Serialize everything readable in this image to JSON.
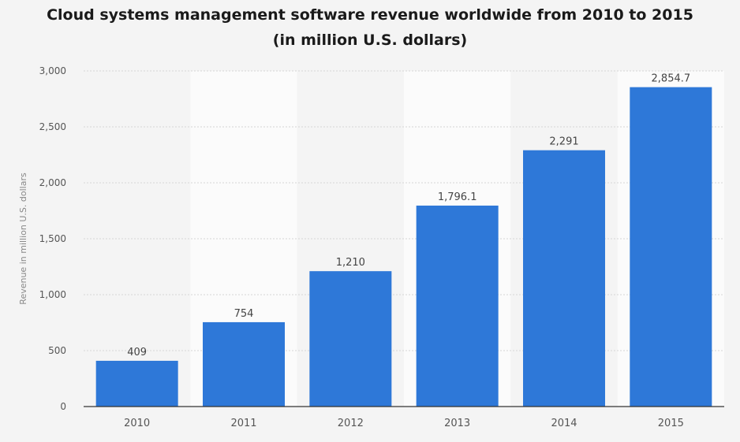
{
  "title_lines": [
    "Cloud systems management software revenue worldwide from 2010 to 2015",
    "(in million U.S. dollars)"
  ],
  "chart_data": {
    "type": "bar",
    "title": "Cloud systems management software revenue worldwide from 2010 to 2015 (in million U.S. dollars)",
    "categories": [
      "2010",
      "2011",
      "2012",
      "2013",
      "2014",
      "2015"
    ],
    "values": [
      409,
      754,
      1210,
      1796.1,
      2291,
      2854.7
    ],
    "value_labels": [
      "409",
      "754",
      "1,210",
      "1,796.1",
      "2,291",
      "2,854.7"
    ],
    "xlabel": "",
    "ylabel": "Revenue in million U.S. dollars",
    "ylim": [
      0,
      3000
    ],
    "yticks": [
      0,
      500,
      1000,
      1500,
      2000,
      2500,
      3000
    ],
    "ytick_labels": [
      "0",
      "500",
      "1,000",
      "1,500",
      "2,000",
      "2,500",
      "3,000"
    ],
    "grid": true,
    "legend": "none",
    "colors": {
      "bar": "#2e78d8",
      "grid": "#d6d6d6",
      "band": "#fbfbfb",
      "axis_text": "#555555",
      "label_text": "#444444"
    }
  }
}
